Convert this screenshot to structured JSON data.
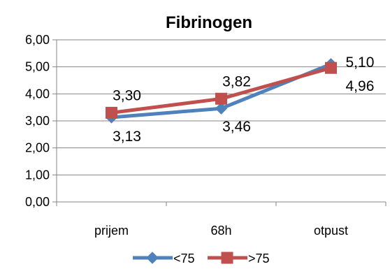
{
  "chart_data": {
    "type": "line",
    "title": "Fibrinogen",
    "categories": [
      "prijem",
      "68h",
      "otpust"
    ],
    "ylim": [
      0,
      6
    ],
    "y_ticks": [
      "0,00",
      "1,00",
      "2,00",
      "3,00",
      "4,00",
      "5,00",
      "6,00"
    ],
    "grid": true,
    "legend_position": "bottom",
    "series": [
      {
        "name": "<75",
        "values": [
          3.13,
          3.46,
          5.1
        ],
        "labels": [
          "3,13",
          "3,46",
          "5,10"
        ],
        "color": "#4F81BD",
        "marker": "diamond"
      },
      {
        "name": ">75",
        "values": [
          3.3,
          3.82,
          4.96
        ],
        "labels": [
          "3,30",
          "3,82",
          "4,96"
        ],
        "color": "#C0504D",
        "marker": "square"
      }
    ]
  }
}
